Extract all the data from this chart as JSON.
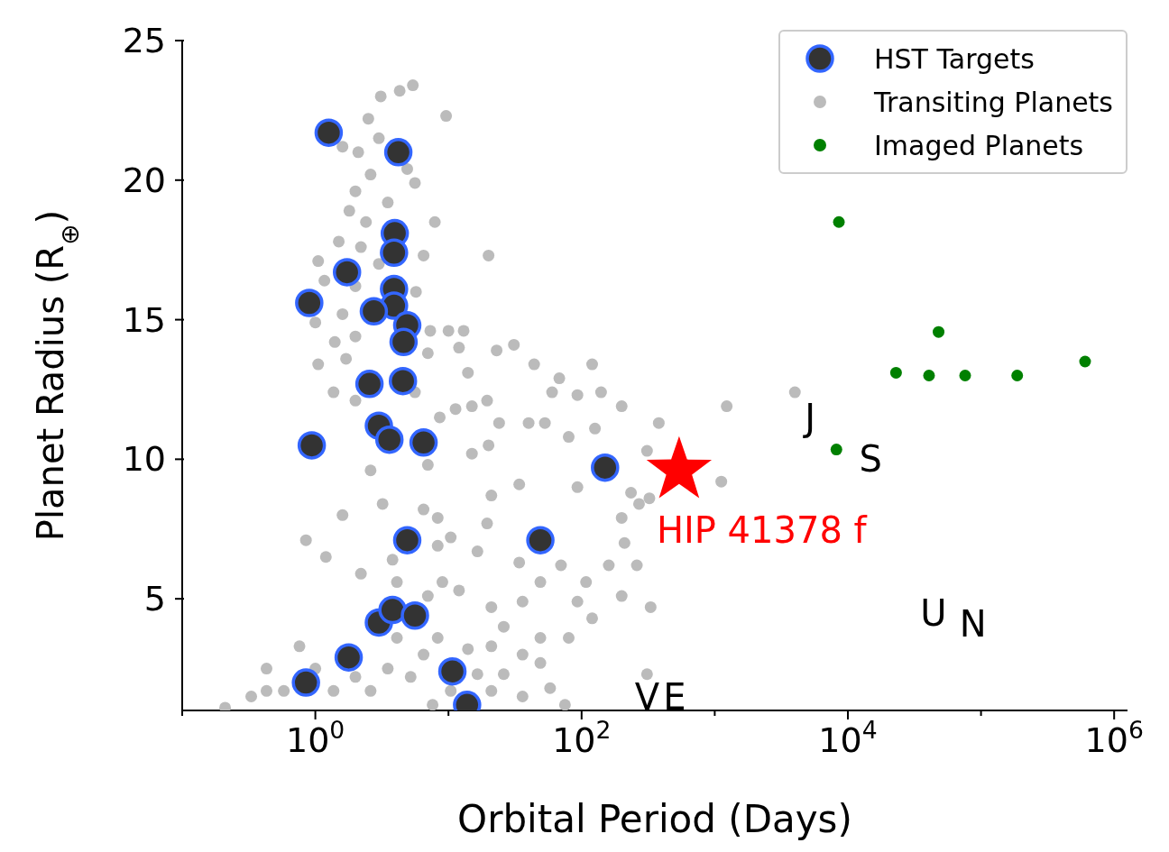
{
  "chart_data": {
    "type": "scatter",
    "xlabel": "Orbital Period (Days)",
    "ylabel": "Planet Radius (R$_{⊕}$)",
    "log": "x",
    "grid": false,
    "legend": "top right",
    "marker": "circle",
    "xlim": [
      0.1,
      1260000
    ],
    "ylim": [
      1,
      25
    ],
    "xticks": [
      {
        "value": 0.1,
        "label": null
      },
      {
        "value": 1,
        "label": "10$^{0}$"
      },
      {
        "value": 10,
        "label": null
      },
      {
        "value": 100,
        "label": "10$^{2}$"
      },
      {
        "value": 1000,
        "label": null
      },
      {
        "value": 10000,
        "label": "10$^{4}$"
      },
      {
        "value": 100000,
        "label": null
      },
      {
        "value": 1000000,
        "label": "10$^{6}$"
      }
    ],
    "yticks": [
      5,
      10,
      15,
      20,
      25
    ],
    "series": [
      {
        "name": "HST Targets",
        "color": "#333333",
        "x": [
          1.26,
          4.2,
          3.95,
          3.9,
          1.73,
          0.9,
          3.9,
          3.9,
          4.9,
          2.75,
          4.6,
          2.55,
          4.55,
          3.0,
          3.6,
          6.5,
          0.94,
          150,
          4.9,
          49,
          3.0,
          3.8,
          5.6,
          1.78,
          0.85,
          10.7,
          13.8
        ],
        "values": [
          21.7,
          21.0,
          18.1,
          17.4,
          16.7,
          15.6,
          16.1,
          15.5,
          14.8,
          15.3,
          14.2,
          12.7,
          12.8,
          11.2,
          10.7,
          10.6,
          10.5,
          9.7,
          7.1,
          7.1,
          4.15,
          4.6,
          4.4,
          2.9,
          2.0,
          2.4,
          1.2
        ]
      },
      {
        "name": "Transiting Planets",
        "color": "#bbbbbb",
        "x": [
          5.4,
          4.3,
          3.1,
          9.6,
          2.5,
          3.0,
          2.1,
          1.6,
          4.9,
          2.6,
          2.0,
          5.6,
          7.9,
          3.5,
          1.8,
          2.4,
          1.05,
          1.5,
          20,
          2.2,
          3.0,
          6.5,
          1.17,
          2.0,
          5.7,
          1.6,
          1.0,
          1.4,
          2.0,
          7.3,
          10,
          13,
          7.0,
          12,
          1.05,
          1.7,
          23,
          31,
          44,
          68,
          120,
          93,
          200,
          140,
          60,
          380,
          1230,
          4000,
          1.37,
          2.0,
          5.6,
          14,
          15,
          19.5,
          11.3,
          8.6,
          24,
          40,
          53,
          80,
          126,
          310,
          20,
          15,
          7,
          2.6,
          34,
          93,
          235,
          1120,
          323,
          270,
          200,
          21,
          3.2,
          6.5,
          8.3,
          19.5,
          10.4,
          3.8,
          8.3,
          210,
          160,
          260,
          200,
          330,
          16.5,
          34,
          70,
          108,
          49,
          93,
          120,
          36,
          21,
          12,
          9,
          7,
          4.1,
          26,
          49,
          80,
          36,
          21,
          16.5,
          26,
          49,
          58,
          75,
          310,
          8.3,
          6.5,
          5.2,
          3.5,
          2.6,
          2.0,
          1.37,
          1.0,
          0.76,
          0.43,
          0.43,
          0.33,
          0.21,
          0.58,
          4.1,
          10.4,
          21,
          36,
          7.6,
          14,
          1.2,
          2.2,
          0.85,
          1.6
        ],
        "values": [
          23.4,
          23.2,
          23.0,
          22.3,
          22.2,
          21.5,
          21.0,
          21.2,
          20.4,
          20.2,
          19.6,
          19.9,
          18.5,
          19.2,
          18.9,
          18.5,
          17.1,
          17.8,
          17.3,
          17.6,
          17.0,
          17.3,
          16.4,
          16.2,
          16.0,
          15.2,
          14.9,
          14.2,
          14.4,
          14.6,
          14.6,
          14.6,
          13.8,
          14.0,
          13.4,
          13.6,
          13.9,
          14.1,
          13.4,
          12.9,
          13.4,
          12.3,
          11.9,
          12.4,
          12.4,
          11.3,
          11.9,
          12.4,
          12.4,
          12.1,
          12.4,
          13.1,
          11.9,
          12.1,
          11.8,
          11.5,
          11.3,
          11.3,
          11.3,
          10.8,
          11.1,
          10.3,
          10.5,
          10.2,
          9.8,
          9.6,
          9.1,
          9.0,
          8.8,
          9.2,
          8.6,
          8.4,
          7.9,
          8.7,
          8.4,
          8.2,
          7.9,
          7.7,
          7.2,
          6.4,
          6.9,
          7.0,
          6.2,
          6.2,
          5.1,
          4.7,
          6.7,
          6.3,
          6.2,
          5.6,
          5.6,
          4.9,
          4.3,
          4.9,
          4.7,
          5.3,
          5.6,
          5.1,
          5.6,
          4.0,
          3.6,
          3.6,
          3.0,
          3.3,
          2.3,
          2.3,
          2.7,
          1.8,
          1.2,
          2.3,
          3.6,
          3.0,
          2.2,
          2.5,
          1.7,
          2.2,
          1.7,
          2.5,
          3.3,
          2.5,
          1.7,
          1.5,
          1.1,
          1.7,
          3.6,
          1.7,
          1.7,
          1.5,
          1.2,
          3.2,
          6.5,
          5.9,
          7.1,
          8.0
        ]
      },
      {
        "name": "Imaged Planets",
        "color": "#008000",
        "x": [
          8560,
          48000,
          23000,
          40700,
          76000,
          187000,
          605000,
          8200
        ],
        "values": [
          18.5,
          14.56,
          13.1,
          13.0,
          13.0,
          13.0,
          13.5,
          10.35
        ]
      },
      {
        "color": "#ff0000",
        "marker": "star",
        "x": [
          540
        ],
        "values": [
          9.6
        ]
      }
    ],
    "annotations": [
      {
        "text": "HIP 41378 f",
        "x": 540,
        "y": 9.6
      },
      "J",
      "S",
      "U",
      "N",
      "V",
      "E"
    ]
  }
}
